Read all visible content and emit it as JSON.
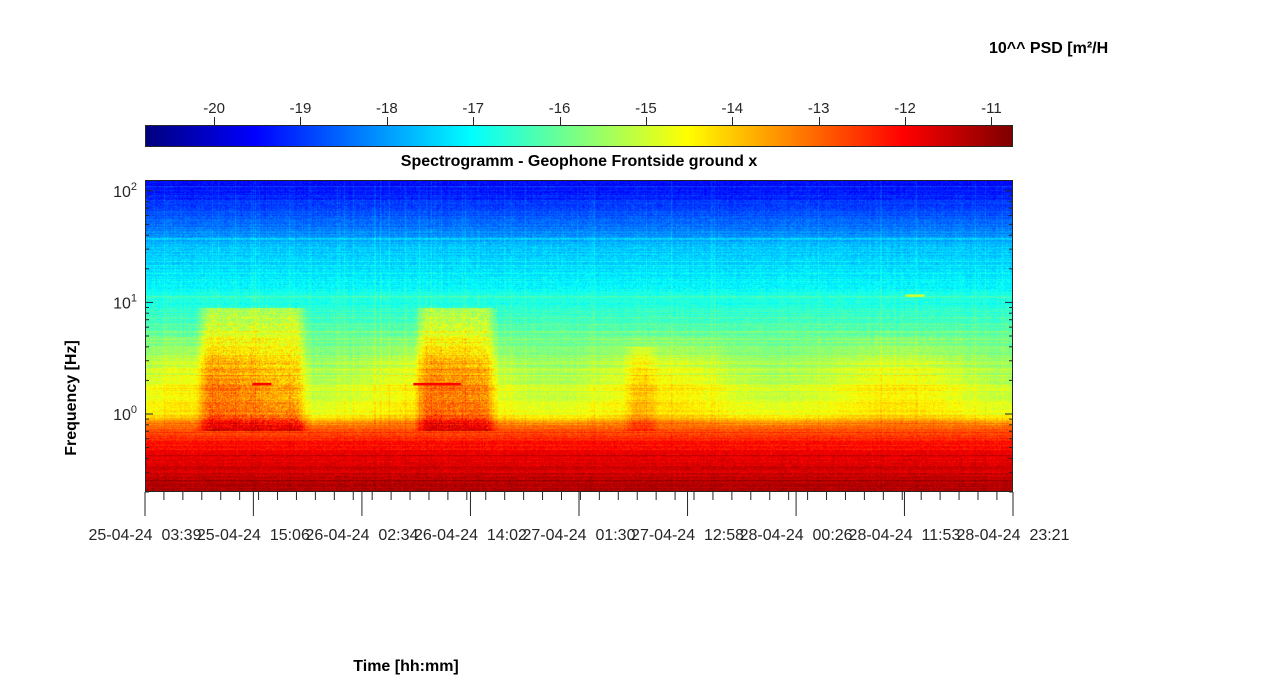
{
  "chart_data": {
    "type": "heatmap",
    "title": "Spectrogramm - Geophone Frontside ground x",
    "xlabel": "Time [hh:mm]",
    "ylabel": "Frequency [Hz]",
    "colorbar": {
      "title": "10^^ PSD [m²/H",
      "range": [
        -20.8,
        -10.75
      ],
      "ticks": [
        -20,
        -19,
        -18,
        -17,
        -16,
        -15,
        -14,
        -13,
        -12,
        -11
      ],
      "tick_labels": [
        "-20",
        "-19",
        "-18",
        "-17",
        "-16",
        "-15",
        "-14",
        "-13",
        "-12",
        "-11"
      ],
      "colormap": "jet"
    },
    "yscale": "log",
    "ylim": [
      0.2,
      125
    ],
    "yticks": [
      1,
      10,
      100
    ],
    "ytick_labels": [
      {
        "base": "10",
        "exp": "0"
      },
      {
        "base": "10",
        "exp": "1"
      },
      {
        "base": "10",
        "exp": "2"
      }
    ],
    "x_ticks": [
      "25-04-24  03:39",
      "25-04-24  15:06",
      "26-04-24  02:34",
      "26-04-24  14:02",
      "27-04-24  01:30",
      "27-04-24  12:58",
      "28-04-24  00:26",
      "28-04-24  11:53",
      "28-04-24  23:21"
    ],
    "psd_profile": [
      {
        "frequency": 0.2,
        "psd": -11.2
      },
      {
        "frequency": 0.4,
        "psd": -11.8
      },
      {
        "frequency": 0.6,
        "psd": -12.3
      },
      {
        "frequency": 0.75,
        "psd": -13.0
      },
      {
        "frequency": 1.0,
        "psd": -14.5
      },
      {
        "frequency": 2.0,
        "psd": -15.0
      },
      {
        "frequency": 5.0,
        "psd": -16.0
      },
      {
        "frequency": 10.0,
        "psd": -16.8
      },
      {
        "frequency": 30.0,
        "psd": -17.6
      },
      {
        "frequency": 50.0,
        "psd": -18.5
      },
      {
        "frequency": 125.0,
        "psd": -19.6
      }
    ],
    "activity_periods": [
      {
        "start": "25-04-24  09:00",
        "end": "25-04-24  21:00",
        "max_frequency": 9,
        "psd_increase": 1.2
      },
      {
        "start": "26-04-24  08:00",
        "end": "26-04-24  17:00",
        "max_frequency": 9,
        "psd_increase": 1.2
      },
      {
        "start": "27-04-24  06:00",
        "end": "27-04-24  10:00",
        "max_frequency": 4,
        "psd_increase": 0.5
      }
    ],
    "tonal_lines": [
      {
        "start": "25-04-24  15:00",
        "end": "25-04-24  17:00",
        "frequency": 1.85,
        "psd": -12.0
      },
      {
        "start": "26-04-24  08:00",
        "end": "26-04-24  13:00",
        "frequency": 1.85,
        "psd": -12.0
      },
      {
        "start": "28-04-24  12:00",
        "end": "28-04-24  14:00",
        "frequency": 11.5,
        "psd": -15.0
      }
    ]
  }
}
